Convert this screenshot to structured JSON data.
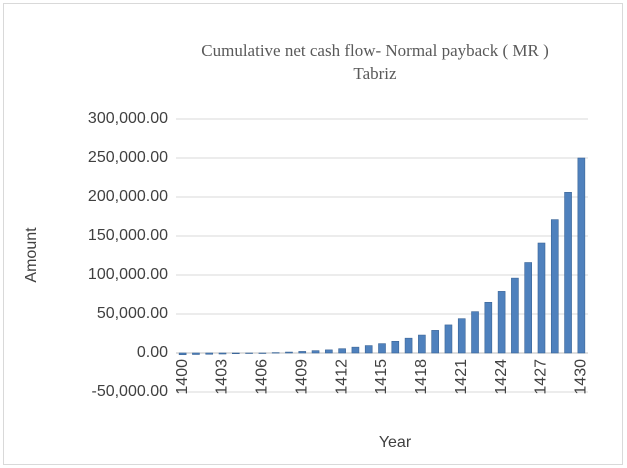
{
  "chart_data": {
    "type": "bar",
    "title": "Cumulative net cash flow- Normal payback ( MR )",
    "subtitle": "Tabriz",
    "x_label": "Year",
    "y_label": "Amount",
    "categories": [
      "1400",
      null,
      null,
      "1403",
      null,
      null,
      "1406",
      null,
      null,
      "1409",
      null,
      null,
      "1412",
      null,
      null,
      "1415",
      null,
      null,
      "1418",
      null,
      null,
      "1421",
      null,
      null,
      "1424",
      null,
      null,
      "1427",
      null,
      null,
      "1430"
    ],
    "values": [
      -2200,
      -1900,
      -1600,
      -1300,
      -900,
      -500,
      0,
      500,
      1200,
      2000,
      3000,
      4000,
      5500,
      7500,
      9500,
      12000,
      15000,
      19000,
      23000,
      29000,
      36000,
      44000,
      53000,
      65000,
      79000,
      96000,
      116000,
      141000,
      171000,
      206000,
      250000
    ],
    "color": "#4f81bd",
    "ylim": [
      -50000,
      300000
    ],
    "yticks": [
      {
        "value": -50000,
        "label": "-50,000.00"
      },
      {
        "value": 0,
        "label": "0.00"
      },
      {
        "value": 50000,
        "label": "50,000.00"
      },
      {
        "value": 100000,
        "label": "100,000.00"
      },
      {
        "value": 150000,
        "label": "150,000.00"
      },
      {
        "value": 200000,
        "label": "200,000.00"
      },
      {
        "value": 250000,
        "label": "250,000.00"
      },
      {
        "value": 300000,
        "label": "300,000.00"
      }
    ],
    "grid": true
  }
}
